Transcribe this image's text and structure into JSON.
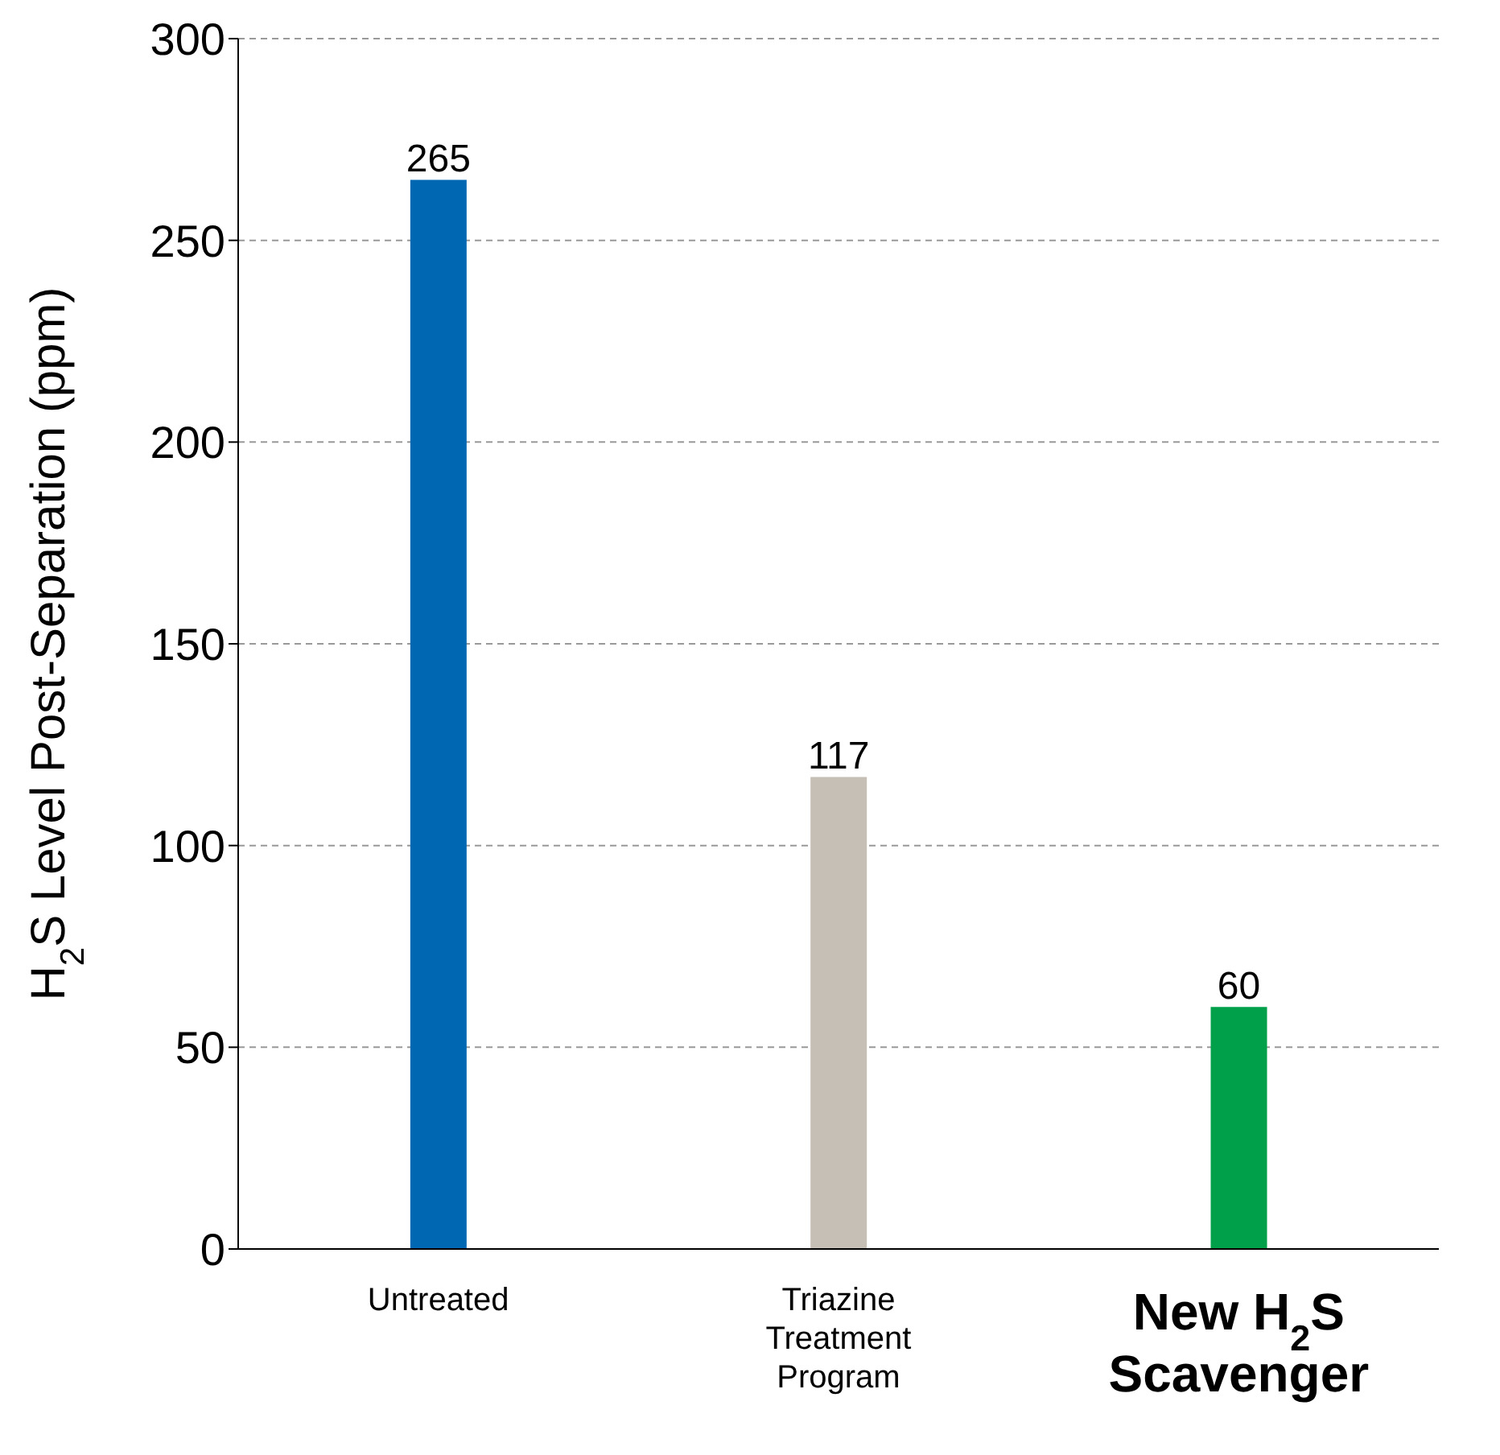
{
  "chart_data": {
    "type": "bar",
    "ylabel": "H$_{2}$S Level Post-Separation (ppm)",
    "categories": [
      "Untreated",
      "Triazine Treatment Program",
      "New H$_{2}$S Scavenger"
    ],
    "values": [
      265,
      117,
      60
    ],
    "colors": [
      "#0068b3",
      "#c6bfb5",
      "#00a04a"
    ],
    "ylim": [
      0,
      300
    ],
    "yticks": [
      0,
      50,
      100,
      150,
      200,
      250,
      300
    ],
    "grid": "y",
    "data_labels": true
  }
}
